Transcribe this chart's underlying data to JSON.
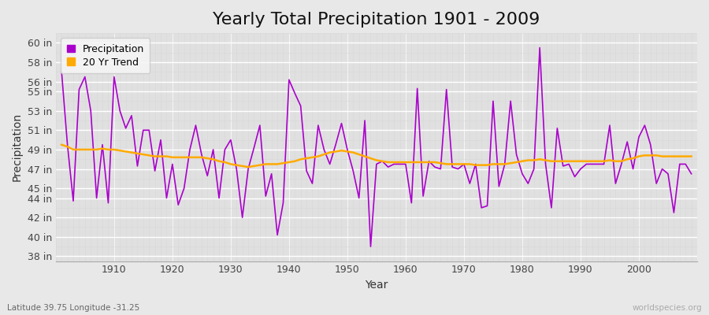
{
  "title": "Yearly Total Precipitation 1901 - 2009",
  "xlabel": "Year",
  "ylabel": "Precipitation",
  "lat_lon_label": "Latitude 39.75 Longitude -31.25",
  "watermark": "worldspecies.org",
  "years": [
    1901,
    1902,
    1903,
    1904,
    1905,
    1906,
    1907,
    1908,
    1909,
    1910,
    1911,
    1912,
    1913,
    1914,
    1915,
    1916,
    1917,
    1918,
    1919,
    1920,
    1921,
    1922,
    1923,
    1924,
    1925,
    1926,
    1927,
    1928,
    1929,
    1930,
    1931,
    1932,
    1933,
    1934,
    1935,
    1936,
    1937,
    1938,
    1939,
    1940,
    1941,
    1942,
    1943,
    1944,
    1945,
    1946,
    1947,
    1948,
    1949,
    1950,
    1951,
    1952,
    1953,
    1954,
    1955,
    1956,
    1957,
    1958,
    1959,
    1960,
    1961,
    1962,
    1963,
    1964,
    1965,
    1966,
    1967,
    1968,
    1969,
    1970,
    1971,
    1972,
    1973,
    1974,
    1975,
    1976,
    1977,
    1978,
    1979,
    1980,
    1981,
    1982,
    1983,
    1984,
    1985,
    1986,
    1987,
    1988,
    1989,
    1990,
    1991,
    1992,
    1993,
    1994,
    1995,
    1996,
    1997,
    1998,
    1999,
    2000,
    2001,
    2002,
    2003,
    2004,
    2005,
    2006,
    2007,
    2008,
    2009
  ],
  "precip": [
    57.0,
    49.5,
    43.7,
    55.2,
    56.5,
    53.0,
    44.0,
    49.5,
    43.5,
    56.5,
    53.0,
    51.2,
    52.5,
    47.3,
    51.0,
    51.0,
    46.8,
    50.0,
    44.0,
    47.5,
    43.3,
    45.0,
    49.0,
    51.5,
    48.5,
    46.3,
    49.0,
    44.0,
    49.0,
    50.0,
    47.0,
    42.0,
    47.0,
    49.2,
    51.5,
    44.2,
    46.5,
    40.2,
    43.5,
    56.2,
    54.8,
    53.5,
    46.8,
    45.5,
    51.5,
    49.0,
    47.5,
    49.5,
    51.7,
    49.0,
    46.8,
    44.0,
    52.0,
    39.0,
    47.5,
    47.8,
    47.2,
    47.5,
    47.5,
    47.5,
    43.5,
    55.3,
    44.2,
    47.8,
    47.2,
    47.0,
    55.2,
    47.2,
    47.0,
    47.5,
    45.5,
    47.5,
    43.0,
    43.2,
    54.0,
    45.2,
    47.5,
    54.0,
    48.5,
    46.5,
    45.5,
    47.0,
    59.5,
    47.5,
    43.0,
    51.2,
    47.3,
    47.5,
    46.2,
    47.0,
    47.5,
    47.5,
    47.5,
    47.5,
    51.5,
    45.5,
    47.5,
    49.8,
    47.0,
    50.3,
    51.5,
    49.5,
    45.5,
    47.0,
    46.5,
    42.5,
    47.5,
    47.5,
    46.5
  ],
  "trend": [
    49.5,
    49.3,
    49.0,
    49.0,
    49.0,
    49.0,
    49.0,
    49.1,
    49.0,
    49.0,
    48.9,
    48.8,
    48.7,
    48.6,
    48.5,
    48.4,
    48.3,
    48.3,
    48.3,
    48.2,
    48.2,
    48.2,
    48.2,
    48.2,
    48.2,
    48.1,
    48.0,
    47.8,
    47.7,
    47.5,
    47.4,
    47.3,
    47.2,
    47.3,
    47.4,
    47.5,
    47.5,
    47.5,
    47.6,
    47.7,
    47.8,
    48.0,
    48.1,
    48.2,
    48.3,
    48.5,
    48.7,
    48.8,
    48.9,
    48.8,
    48.7,
    48.5,
    48.3,
    48.1,
    47.9,
    47.8,
    47.7,
    47.7,
    47.7,
    47.7,
    47.7,
    47.7,
    47.7,
    47.7,
    47.7,
    47.6,
    47.5,
    47.5,
    47.5,
    47.5,
    47.5,
    47.4,
    47.4,
    47.4,
    47.5,
    47.5,
    47.5,
    47.6,
    47.7,
    47.8,
    47.9,
    47.9,
    48.0,
    47.9,
    47.8,
    47.8,
    47.8,
    47.8,
    47.8,
    47.8,
    47.8,
    47.8,
    47.8,
    47.8,
    47.9,
    47.8,
    47.8,
    48.0,
    48.1,
    48.3,
    48.4,
    48.4,
    48.4,
    48.3,
    48.3,
    48.3,
    48.3,
    48.3,
    48.3
  ],
  "precip_color": "#aa00cc",
  "trend_color": "#ffaa00",
  "fig_bg_color": "#e8e8e8",
  "plot_bg_color": "#e0e0e0",
  "grid_major_color": "#ffffff",
  "grid_minor_color": "#d8d8d8",
  "ylim": [
    37.5,
    61.0
  ],
  "yticks": [
    38,
    40,
    42,
    44,
    45,
    47,
    49,
    51,
    53,
    55,
    56,
    58,
    60
  ],
  "ytick_labels": [
    "38 in",
    "40 in",
    "42 in",
    "44 in",
    "45 in",
    "47 in",
    "49 in",
    "51 in",
    "53 in",
    "55 in",
    "56 in",
    "58 in",
    "60 in"
  ],
  "xticks": [
    1910,
    1920,
    1930,
    1940,
    1950,
    1960,
    1970,
    1980,
    1990,
    2000
  ],
  "xlim": [
    1900,
    2010
  ],
  "title_fontsize": 16,
  "label_fontsize": 10,
  "tick_fontsize": 9,
  "legend_facecolor": "#f5f5f5",
  "legend_edgecolor": "#cccccc"
}
